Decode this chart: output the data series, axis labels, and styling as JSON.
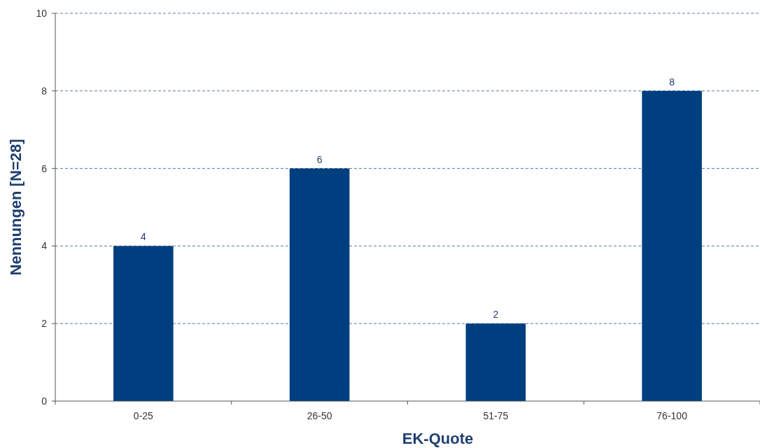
{
  "chart_data": {
    "type": "bar",
    "xlabel": "EK-Quote",
    "ylabel": "Nennungen [N=28]",
    "categories": [
      "0-25",
      "26-50",
      "51-75",
      "76-100"
    ],
    "values": [
      4,
      6,
      2,
      8
    ],
    "color": "#003f7f",
    "ylim": [
      0,
      10
    ],
    "yticks": [
      0,
      2,
      4,
      6,
      8,
      10
    ],
    "grid": "y",
    "data_labels": true
  }
}
